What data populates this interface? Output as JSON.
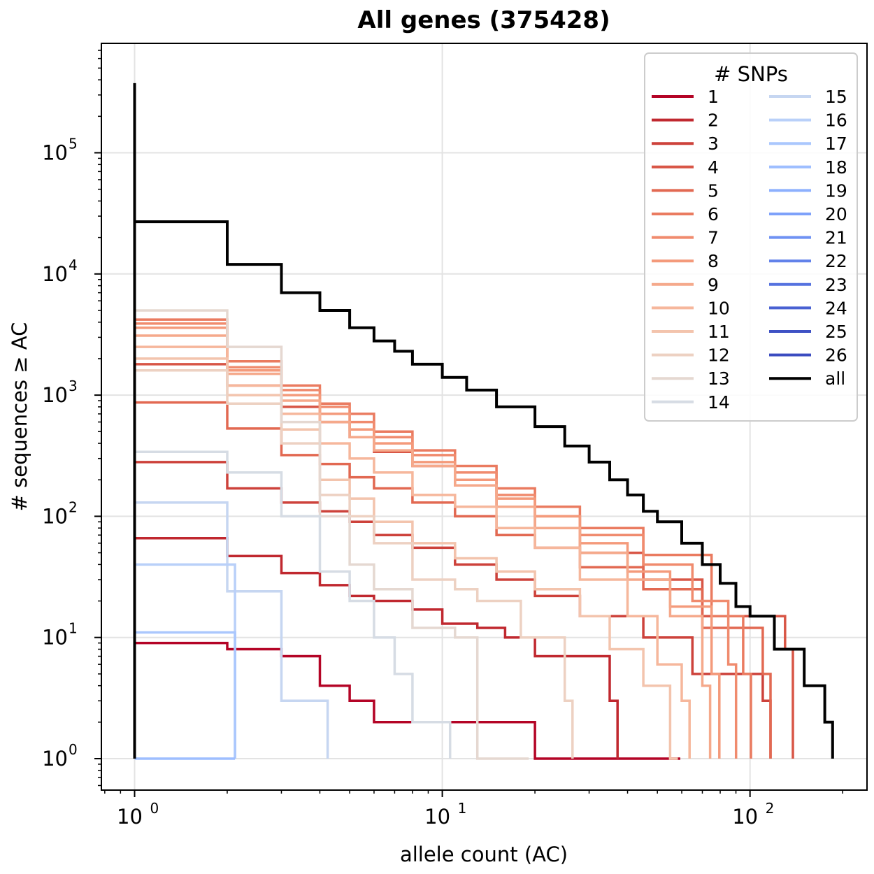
{
  "chart_data": {
    "type": "line",
    "title": "All genes (375428)",
    "xlabel": "allele count (AC)",
    "ylabel": "# sequences ≥ AC",
    "xscale": "log",
    "yscale": "log",
    "xlim": [
      0.78,
      240
    ],
    "ylim": [
      0.55,
      800000
    ],
    "grid": true,
    "x_ticks": [
      {
        "base": "10",
        "exp": "0",
        "value": 1
      },
      {
        "base": "10",
        "exp": "1",
        "value": 10
      },
      {
        "base": "10",
        "exp": "2",
        "value": 100
      }
    ],
    "y_ticks": [
      {
        "base": "10",
        "exp": "0",
        "value": 1
      },
      {
        "base": "10",
        "exp": "1",
        "value": 10
      },
      {
        "base": "10",
        "exp": "2",
        "value": 100
      },
      {
        "base": "10",
        "exp": "3",
        "value": 1000
      },
      {
        "base": "10",
        "exp": "4",
        "value": 10000
      },
      {
        "base": "10",
        "exp": "5",
        "value": 100000
      }
    ],
    "legend": {
      "title": "# SNPs",
      "placement": "top-right",
      "columns": 2
    },
    "series": [
      {
        "name": "1",
        "color": "#b40426",
        "x": [
          1,
          2,
          3,
          4,
          5,
          6,
          8,
          20,
          24,
          30,
          35,
          56
        ],
        "y": [
          9,
          8,
          7,
          4,
          3,
          2,
          2,
          1,
          1,
          1,
          1,
          1
        ]
      },
      {
        "name": "2",
        "color": "#c0282f",
        "x": [
          1,
          2,
          3,
          4,
          5,
          6,
          8,
          10,
          13,
          16,
          20,
          35
        ],
        "y": [
          66,
          47,
          34,
          27,
          22,
          20,
          17,
          13,
          12,
          10,
          7,
          3
        ]
      },
      {
        "name": "3",
        "color": "#cd423b",
        "x": [
          1,
          2,
          3,
          4,
          5,
          6,
          8,
          11,
          15,
          20,
          28,
          45,
          65,
          110
        ],
        "y": [
          280,
          170,
          130,
          110,
          90,
          70,
          55,
          40,
          30,
          22,
          15,
          10,
          5,
          3
        ]
      },
      {
        "name": "4",
        "color": "#d85646",
        "x": [
          1,
          2,
          3,
          4,
          5,
          6,
          8,
          11,
          15,
          20,
          28,
          45,
          70,
          130
        ],
        "y": [
          1800,
          1200,
          800,
          600,
          450,
          340,
          260,
          180,
          120,
          80,
          50,
          30,
          15,
          8
        ]
      },
      {
        "name": "5",
        "color": "#e26952",
        "x": [
          1,
          2,
          3,
          4,
          5,
          6,
          8,
          11,
          15,
          20,
          28,
          45,
          70,
          110
        ],
        "y": [
          870,
          530,
          320,
          270,
          210,
          170,
          130,
          100,
          70,
          55,
          38,
          25,
          12,
          5
        ]
      },
      {
        "name": "6",
        "color": "#ea7b60",
        "x": [
          1,
          2,
          3,
          4,
          5,
          6,
          8,
          11,
          15,
          20,
          28,
          45,
          75,
          95
        ],
        "y": [
          4200,
          1900,
          1200,
          850,
          700,
          500,
          350,
          260,
          170,
          120,
          80,
          48,
          15,
          5
        ]
      },
      {
        "name": "7",
        "color": "#f08b6e",
        "x": [
          1,
          2,
          3,
          4,
          5,
          6,
          8,
          11,
          15,
          20,
          28,
          45,
          65,
          85
        ],
        "y": [
          3900,
          1700,
          1100,
          800,
          600,
          450,
          320,
          230,
          150,
          100,
          70,
          40,
          20,
          6
        ]
      },
      {
        "name": "8",
        "color": "#f49a7b",
        "x": [
          1,
          2,
          3,
          4,
          5,
          6,
          8,
          11,
          15,
          20,
          28,
          40,
          55,
          75
        ],
        "y": [
          3600,
          1600,
          1000,
          700,
          520,
          400,
          280,
          200,
          140,
          100,
          60,
          35,
          18,
          5
        ]
      },
      {
        "name": "9",
        "color": "#f5a98b",
        "x": [
          1,
          2,
          3,
          4,
          5,
          6,
          8,
          11,
          15,
          20,
          28,
          40,
          55,
          70
        ],
        "y": [
          3100,
          1500,
          900,
          600,
          450,
          350,
          260,
          180,
          120,
          80,
          50,
          30,
          15,
          4
        ]
      },
      {
        "name": "10",
        "color": "#f6b79c",
        "x": [
          1,
          2,
          3,
          4,
          5,
          6,
          8,
          11,
          15,
          20,
          28,
          40,
          50,
          60
        ],
        "y": [
          2500,
          1200,
          700,
          400,
          300,
          230,
          150,
          120,
          80,
          55,
          30,
          15,
          6,
          3
        ]
      },
      {
        "name": "11",
        "color": "#f3c4ad",
        "x": [
          1,
          2,
          3,
          4,
          5,
          6,
          8,
          11,
          15,
          20,
          28,
          35,
          45,
          55
        ],
        "y": [
          2000,
          1000,
          520,
          200,
          140,
          90,
          60,
          45,
          35,
          25,
          15,
          8,
          4,
          1
        ]
      },
      {
        "name": "12",
        "color": "#edd1c2",
        "x": [
          1,
          2,
          3,
          4,
          5,
          6,
          8,
          11,
          13,
          18,
          25
        ],
        "y": [
          1600,
          850,
          400,
          150,
          100,
          60,
          30,
          25,
          20,
          10,
          3
        ]
      },
      {
        "name": "13",
        "color": "#e5d8d1",
        "x": [
          1,
          2,
          3,
          4,
          5,
          6,
          8,
          11,
          13,
          18
        ],
        "y": [
          5000,
          2500,
          600,
          100,
          40,
          25,
          12,
          10,
          1,
          1
        ]
      },
      {
        "name": "14",
        "color": "#d6dce4",
        "x": [
          1,
          2,
          3,
          4,
          5,
          6,
          7,
          8,
          10
        ],
        "y": [
          340,
          230,
          100,
          35,
          20,
          10,
          5,
          2,
          2
        ]
      },
      {
        "name": "15",
        "color": "#c6d6f1",
        "x": [
          1,
          2,
          3,
          4
        ],
        "y": [
          130,
          24,
          3,
          3
        ]
      },
      {
        "name": "16",
        "color": "#b9d0f9",
        "x": [
          1,
          2
        ],
        "y": [
          40,
          40
        ]
      },
      {
        "name": "17",
        "color": "#aac7fd",
        "x": [
          1,
          2
        ],
        "y": [
          11,
          11
        ]
      },
      {
        "name": "18",
        "color": "#9ebeff",
        "x": [
          1,
          2
        ],
        "y": [
          1,
          1
        ]
      },
      {
        "name": "19",
        "color": "#8db0fe",
        "x": [
          1
        ],
        "y": [
          1
        ]
      },
      {
        "name": "20",
        "color": "#7ea1fa",
        "x": [
          1
        ],
        "y": [
          1
        ]
      },
      {
        "name": "21",
        "color": "#6f92f3",
        "x": [
          1
        ],
        "y": [
          1
        ]
      },
      {
        "name": "22",
        "color": "#6282ea",
        "x": [
          1
        ],
        "y": [
          1
        ]
      },
      {
        "name": "23",
        "color": "#5572df",
        "x": [
          1
        ],
        "y": [
          1
        ]
      },
      {
        "name": "24",
        "color": "#4961d2",
        "x": [
          1
        ],
        "y": [
          1
        ]
      },
      {
        "name": "25",
        "color": "#3e51c4",
        "x": [
          1
        ],
        "y": [
          1
        ]
      },
      {
        "name": "26",
        "color": "#3b4cc0",
        "x": [
          1
        ],
        "y": [
          1
        ]
      },
      {
        "name": "all",
        "color": "#000000",
        "x": [
          1,
          1.0001,
          2,
          3,
          4,
          5,
          6,
          7,
          8,
          10,
          12,
          15,
          20,
          25,
          30,
          35,
          40,
          45,
          50,
          60,
          70,
          80,
          90,
          100,
          120,
          150,
          175
        ],
        "y": [
          375428,
          27000,
          12000,
          7000,
          5000,
          3600,
          2800,
          2300,
          1800,
          1400,
          1100,
          800,
          550,
          380,
          280,
          200,
          150,
          110,
          90,
          60,
          40,
          28,
          18,
          15,
          8,
          4,
          2
        ]
      }
    ]
  }
}
